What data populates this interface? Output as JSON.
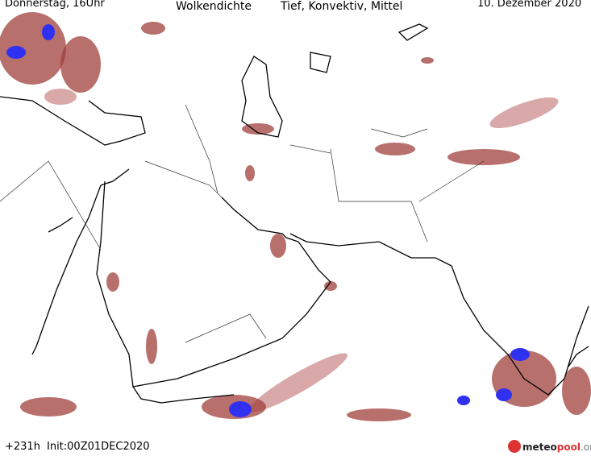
{
  "header": {
    "left": "Donnerstag, 16Uhr",
    "title": "Wolkendichte",
    "subtitle": "Tief, Konvektiv, Mittel",
    "right": "10. Dezember 2020"
  },
  "footer": {
    "run": "+231h",
    "init": "Init:00Z01DEC2020",
    "logo": {
      "part1": "meteo",
      "part2": "pool",
      "part3": ".org"
    }
  }
}
